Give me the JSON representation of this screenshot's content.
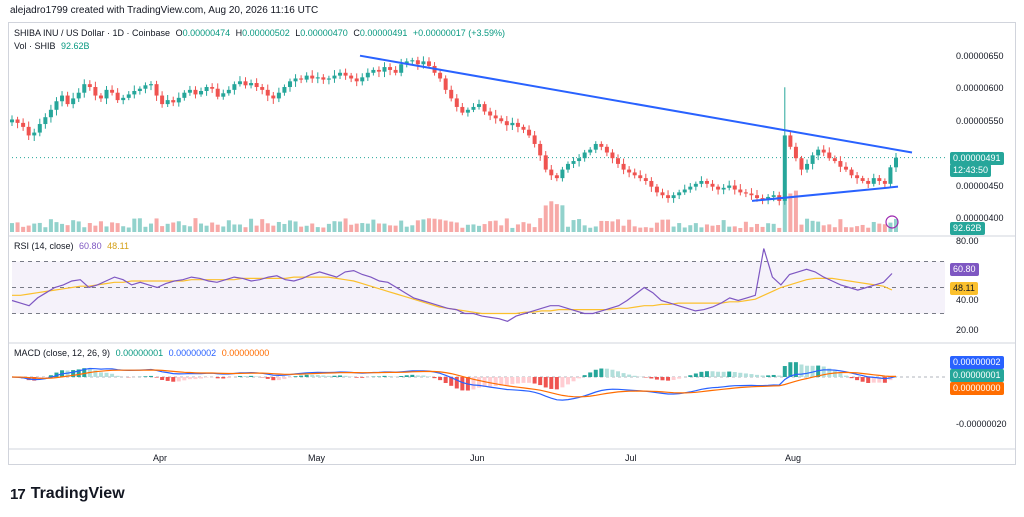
{
  "header": {
    "author_line": "alejadro1799 created with TradingView.com, Aug 20, 2026 11:16 UTC"
  },
  "legend": {
    "symbol": "SHIBA INU / US Dollar · 1D · Coinbase",
    "o_label": "O",
    "o_value": "0.00000474",
    "h_label": "H",
    "h_value": "0.00000502",
    "l_label": "L",
    "l_value": "0.00000470",
    "c_label": "C",
    "c_value": "0.00000491",
    "change": "+0.00000017 (+3.59%)",
    "vol_label": "Vol · SHIB",
    "vol_value": "92.62B"
  },
  "rsi_legend": {
    "label": "RSI (14, close)",
    "rsi": "60.80",
    "ma": "48.11"
  },
  "macd_legend": {
    "label": "MACD (close, 12, 26, 9)",
    "hist": "0.00000001",
    "macd": "0.00000002",
    "signal": "0.00000000"
  },
  "price_tags": {
    "last": "0.00000491",
    "countdown": "12:43:50",
    "volume": "92.62B",
    "rsi": "60.80",
    "rsi_ma": "48.11",
    "macd": "0.00000002",
    "hist": "0.00000001",
    "signal": "0.00000000"
  },
  "colors": {
    "up": "#26a69a",
    "down": "#ef5350",
    "trend": "#2962ff",
    "rsi": "#7e57c2",
    "rsi_ma": "#fbc02d",
    "macd": "#2962ff",
    "signal": "#ff6d00"
  },
  "footer": {
    "brand": "TradingView",
    "logo_icon": "tradingview-logo-icon"
  },
  "chart_data": [
    {
      "type": "candlestick",
      "title": "SHIBA INU / US Dollar · 1D · Coinbase",
      "x_tick_labels": [
        "Apr",
        "May",
        "Jun",
        "Jul",
        "Aug"
      ],
      "y_tick_labels": [
        "0.00000650",
        "0.00000600",
        "0.00000550",
        "0.00000500",
        "0.00000450",
        "0.00000400"
      ],
      "ylim": [
        3.85e-06,
        6.8e-06
      ],
      "last_close": 4.91e-06,
      "closes": [
        5.58,
        5.52,
        5.45,
        5.3,
        5.35,
        5.5,
        5.62,
        5.75,
        5.9,
        6.0,
        5.85,
        5.95,
        6.05,
        6.2,
        6.15,
        6.0,
        5.95,
        6.1,
        6.05,
        5.92,
        5.96,
        6.02,
        6.08,
        6.12,
        6.18,
        6.2,
        6.0,
        5.85,
        5.92,
        5.88,
        5.96,
        6.05,
        6.1,
        6.02,
        6.08,
        6.15,
        6.12,
        5.98,
        6.04,
        6.1,
        6.2,
        6.25,
        6.18,
        6.22,
        6.15,
        6.1,
        6.0,
        5.95,
        6.05,
        6.15,
        6.25,
        6.3,
        6.28,
        6.35,
        6.3,
        6.32,
        6.28,
        6.3,
        6.35,
        6.4,
        6.35,
        6.3,
        6.25,
        6.32,
        6.4,
        6.45,
        6.42,
        6.5,
        6.45,
        6.4,
        6.55,
        6.6,
        6.62,
        6.55,
        6.6,
        6.52,
        6.4,
        6.3,
        6.1,
        5.95,
        5.8,
        5.7,
        5.75,
        5.8,
        5.85,
        5.72,
        5.65,
        5.6,
        5.55,
        5.48,
        5.52,
        5.45,
        5.4,
        5.3,
        5.15,
        4.95,
        4.7,
        4.6,
        4.55,
        4.7,
        4.8,
        4.85,
        4.9,
        5.0,
        5.05,
        5.15,
        5.1,
        5.0,
        4.9,
        4.8,
        4.7,
        4.65,
        4.6,
        4.55,
        4.5,
        4.4,
        4.3,
        4.25,
        4.2,
        4.25,
        4.3,
        4.35,
        4.4,
        4.45,
        4.5,
        4.45,
        4.4,
        4.35,
        4.38,
        4.42,
        4.35,
        4.3,
        4.28,
        4.25,
        4.2,
        4.18,
        4.22,
        4.25,
        4.15,
        5.3,
        5.1,
        4.9,
        4.7,
        4.8,
        4.95,
        5.05,
        5.0,
        4.9,
        4.85,
        4.75,
        4.7,
        4.6,
        4.55,
        4.5,
        4.45,
        4.55,
        4.5,
        4.45,
        4.74,
        4.91
      ],
      "x_axis_labels_in_ticks": true,
      "volume": {
        "series_name": "Vol · SHIB",
        "last": "92.62B"
      },
      "trendlines": [
        {
          "from_date": "May",
          "to_date": "Aug",
          "note": "descending resistance"
        },
        {
          "from_date": "Jul",
          "to_date": "Aug",
          "note": "ascending support"
        }
      ]
    },
    {
      "type": "line",
      "title": "RSI (14, close)",
      "y_tick_labels": [
        "80.00",
        "40.00",
        "20.00"
      ],
      "ylim": [
        15,
        85
      ],
      "bands": [
        70,
        50,
        30
      ],
      "series": [
        {
          "name": "RSI",
          "last": 60.8,
          "values": [
            40,
            38,
            36,
            42,
            46,
            50,
            52,
            55,
            56,
            50,
            52,
            55,
            58,
            56,
            52,
            54,
            52,
            50,
            53,
            55,
            56,
            58,
            57,
            55,
            54,
            56,
            58,
            57,
            55,
            56,
            58,
            59,
            56,
            55,
            57,
            60,
            62,
            60,
            58,
            62,
            63,
            60,
            58,
            55,
            54,
            50,
            46,
            42,
            40,
            38,
            36,
            34,
            33,
            30,
            30,
            28,
            27,
            26,
            24,
            28,
            30,
            32,
            34,
            36,
            36,
            34,
            32,
            30,
            30,
            32,
            34,
            36,
            40,
            45,
            50,
            46,
            40,
            38,
            36,
            34,
            32,
            33,
            35,
            38,
            42,
            40,
            42,
            44,
            80,
            58,
            52,
            60,
            62,
            64,
            62,
            58,
            55,
            52,
            50,
            48,
            50,
            52,
            54,
            60.8
          ]
        },
        {
          "name": "RSI-based MA",
          "last": 48.11,
          "values": [
            44,
            44,
            45,
            46,
            47,
            48,
            49,
            50,
            51,
            51,
            52,
            53,
            54,
            54,
            55,
            55,
            55,
            55,
            55,
            55,
            55,
            56,
            56,
            56,
            56,
            56,
            56,
            57,
            57,
            57,
            57,
            57,
            57,
            58,
            58,
            58,
            58,
            58,
            57,
            56,
            55,
            53,
            51,
            49,
            47,
            45,
            43,
            41,
            39,
            37,
            35,
            34,
            33,
            32,
            31,
            30,
            30,
            30,
            30,
            30,
            31,
            31,
            32,
            32,
            33,
            33,
            33,
            33,
            33,
            33,
            33,
            34,
            34,
            35,
            36,
            36,
            37,
            37,
            38,
            38,
            38,
            38,
            38,
            38,
            39,
            39,
            40,
            41,
            44,
            47,
            50,
            52,
            54,
            56,
            57,
            57,
            57,
            56,
            55,
            54,
            53,
            52,
            51,
            48.11
          ]
        }
      ]
    },
    {
      "type": "bar+line",
      "title": "MACD (close, 12, 26, 9)",
      "y_tick_labels": [
        "-0.00000020"
      ],
      "series": [
        {
          "name": "Histogram",
          "last": 1e-08
        },
        {
          "name": "MACD",
          "last": 2e-08
        },
        {
          "name": "Signal",
          "last": 0.0
        }
      ]
    }
  ]
}
